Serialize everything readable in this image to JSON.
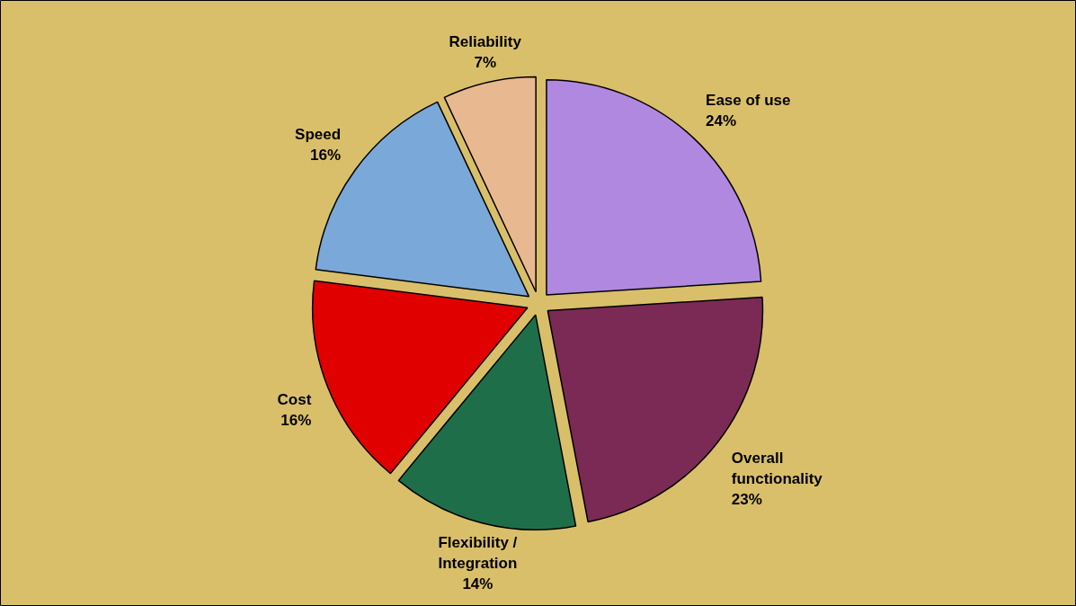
{
  "chart_data": {
    "type": "pie",
    "categories": [
      "Ease of use",
      "Overall functionality",
      "Flexibility / Integration",
      "Cost",
      "Speed",
      "Reliability"
    ],
    "values": [
      24,
      23,
      14,
      16,
      16,
      7
    ],
    "value_labels": [
      "24%",
      "23%",
      "14%",
      "16%",
      "16%",
      "7%"
    ],
    "colors": [
      "#b088e0",
      "#7a2a55",
      "#1f6e4a",
      "#e00000",
      "#7aa8d8",
      "#e8b890"
    ]
  }
}
